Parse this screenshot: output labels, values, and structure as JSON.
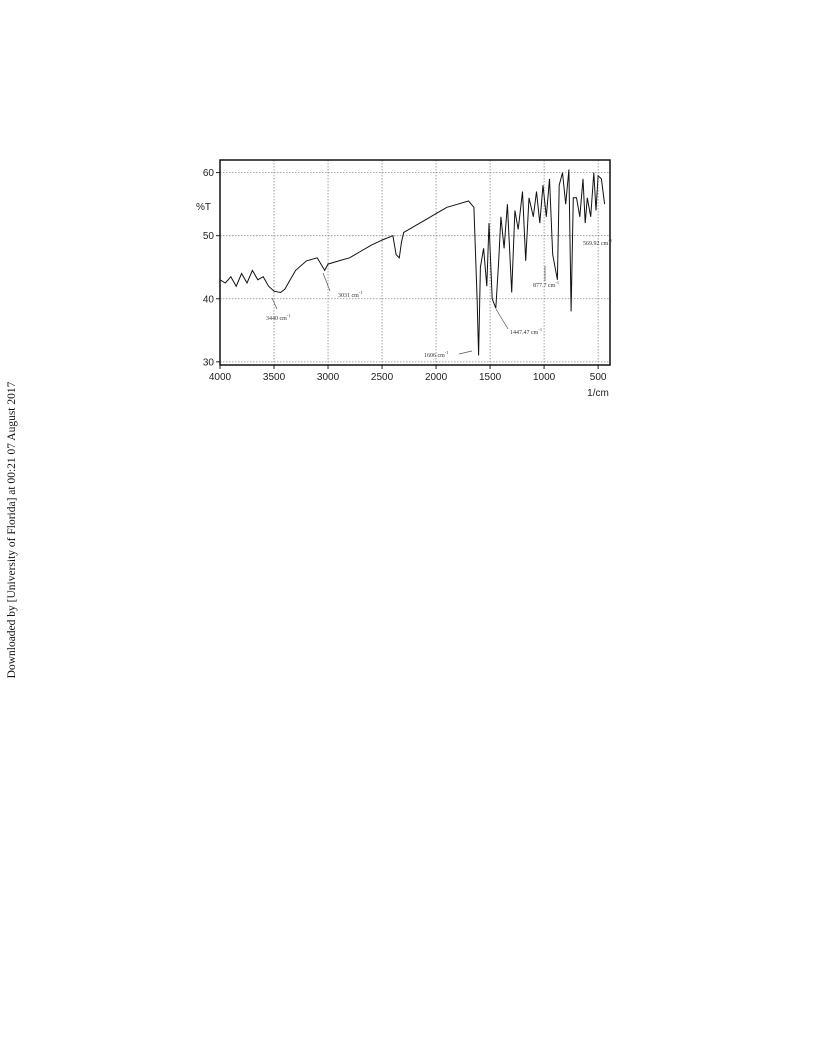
{
  "side_note": "Downloaded by [University of Florida] at 00:21 07 August 2017",
  "chart_data": {
    "type": "line",
    "y_label": "%T",
    "x_label": "1/cm",
    "xlim": [
      4000,
      390
    ],
    "ylim": [
      29.5,
      62
    ],
    "xticks": [
      4000,
      3500,
      3000,
      2500,
      2000,
      1500,
      1000,
      500
    ],
    "yticks": [
      30,
      40,
      50,
      60
    ],
    "grid": true,
    "color": "#111111",
    "x": [
      4000,
      3950,
      3900,
      3850,
      3800,
      3750,
      3700,
      3650,
      3600,
      3550,
      3500,
      3440,
      3400,
      3350,
      3300,
      3200,
      3100,
      3031,
      3000,
      2900,
      2800,
      2700,
      2600,
      2500,
      2400,
      2370,
      2340,
      2320,
      2300,
      2200,
      2100,
      2000,
      1900,
      1800,
      1700,
      1650,
      1620,
      1606,
      1590,
      1560,
      1530,
      1510,
      1480,
      1447,
      1420,
      1400,
      1370,
      1340,
      1300,
      1270,
      1240,
      1200,
      1170,
      1140,
      1100,
      1070,
      1040,
      1010,
      980,
      950,
      920,
      877,
      860,
      830,
      800,
      770,
      750,
      730,
      700,
      670,
      640,
      620,
      600,
      569,
      540,
      520,
      500,
      470,
      440
    ],
    "values": [
      43,
      42.5,
      43.5,
      42,
      44,
      42.5,
      44.5,
      43,
      43.5,
      42,
      41.2,
      41,
      41.5,
      43,
      44.5,
      46,
      46.5,
      44.5,
      45.5,
      46,
      46.5,
      47.5,
      48.5,
      49.3,
      50,
      47,
      46.5,
      49,
      50.5,
      51.5,
      52.5,
      53.5,
      54.5,
      55,
      55.5,
      54.5,
      40,
      31,
      45,
      48,
      42,
      52,
      40,
      38.5,
      46,
      53,
      48,
      55,
      41,
      54,
      51,
      57,
      46,
      56,
      53,
      57,
      52,
      58,
      53,
      59,
      47,
      43,
      58,
      60,
      55,
      60.5,
      38,
      56,
      56,
      53,
      59,
      52,
      56,
      53,
      60,
      54,
      59.5,
      59,
      55
    ],
    "annotations": [
      {
        "text": "3440  cm",
        "sup": "-1"
      },
      {
        "text": "3031  cm",
        "sup": "-1"
      },
      {
        "text": "1606  cm",
        "sup": "-1"
      },
      {
        "text": "1447.47  cm",
        "sup": "-1"
      },
      {
        "text": "877.7  cm",
        "sup": "-1"
      },
      {
        "text": "569.92  cm",
        "sup": "-1"
      }
    ]
  }
}
